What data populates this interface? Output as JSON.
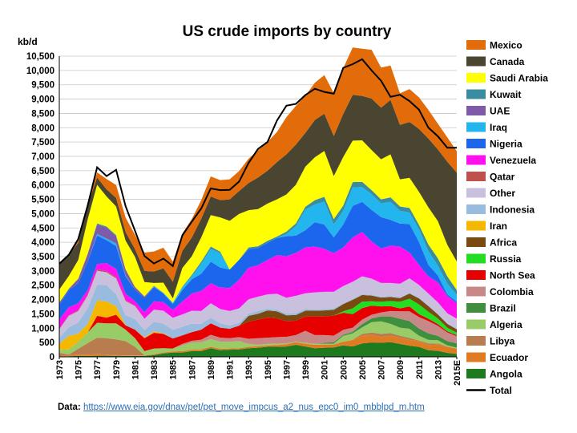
{
  "chart_data": {
    "type": "area",
    "stacked": true,
    "title": "US crude imports by country",
    "ylabel": "kb/d",
    "ylim": [
      0,
      10500
    ],
    "yticks": [
      0,
      500,
      1000,
      1500,
      2000,
      2500,
      3000,
      3500,
      4000,
      4500,
      5000,
      5500,
      6000,
      6500,
      7000,
      7500,
      8000,
      8500,
      9000,
      9500,
      10000,
      10500
    ],
    "ytick_labels": [
      "0",
      "500",
      "1,000",
      "1,500",
      "2,000",
      "2,500",
      "3,000",
      "3,500",
      "4,000",
      "4,500",
      "5,000",
      "5,500",
      "6,000",
      "6,500",
      "7,000",
      "7,500",
      "8,000",
      "8,500",
      "9,000",
      "9,500",
      "10,000",
      "10,500"
    ],
    "x": [
      1973,
      1974,
      1975,
      1976,
      1977,
      1978,
      1979,
      1980,
      1981,
      1982,
      1983,
      1984,
      1985,
      1986,
      1987,
      1988,
      1989,
      1990,
      1991,
      1992,
      1993,
      1994,
      1995,
      1996,
      1997,
      1998,
      1999,
      2000,
      2001,
      2002,
      2003,
      2004,
      2005,
      2006,
      2007,
      2008,
      2009,
      2010,
      2011,
      2012,
      2013,
      2014,
      2015
    ],
    "xtick_labels": [
      "1973",
      "1975",
      "1977",
      "1979",
      "1981",
      "1983",
      "1985",
      "1987",
      "1989",
      "1991",
      "1993",
      "1995",
      "1997",
      "1999",
      "2001",
      "2003",
      "2005",
      "2007",
      "2009",
      "2011",
      "2013",
      "2015E"
    ],
    "grid": true,
    "legend_position": "right",
    "series": [
      {
        "name": "Angola",
        "color": "#1f7a1f",
        "values": [
          0,
          20,
          30,
          30,
          40,
          40,
          30,
          30,
          30,
          30,
          60,
          120,
          150,
          150,
          200,
          200,
          300,
          230,
          250,
          260,
          300,
          320,
          350,
          350,
          360,
          420,
          360,
          300,
          320,
          330,
          400,
          360,
          470,
          500,
          490,
          510,
          450,
          390,
          350,
          230,
          210,
          140,
          100
        ]
      },
      {
        "name": "Ecuador",
        "color": "#e07b22",
        "values": [
          20,
          40,
          50,
          50,
          50,
          40,
          30,
          20,
          20,
          20,
          30,
          30,
          40,
          50,
          50,
          60,
          50,
          50,
          40,
          40,
          50,
          50,
          50,
          60,
          80,
          90,
          100,
          120,
          110,
          100,
          130,
          220,
          270,
          270,
          200,
          220,
          210,
          200,
          200,
          180,
          220,
          210,
          190
        ]
      },
      {
        "name": "Libya",
        "color": "#b87c4f",
        "values": [
          120,
          20,
          200,
          400,
          580,
          570,
          550,
          500,
          300,
          0,
          0,
          0,
          0,
          0,
          0,
          0,
          0,
          0,
          0,
          0,
          0,
          0,
          0,
          0,
          0,
          0,
          0,
          0,
          0,
          0,
          0,
          20,
          60,
          80,
          110,
          100,
          80,
          70,
          20,
          60,
          40,
          10,
          0
        ]
      },
      {
        "name": "Algeria",
        "color": "#99cc66",
        "values": [
          100,
          180,
          250,
          370,
          520,
          520,
          560,
          400,
          300,
          150,
          200,
          150,
          100,
          200,
          250,
          250,
          270,
          250,
          230,
          250,
          100,
          50,
          50,
          50,
          30,
          20,
          30,
          30,
          30,
          30,
          200,
          220,
          230,
          360,
          440,
          320,
          280,
          320,
          170,
          120,
          110,
          40,
          30
        ]
      },
      {
        "name": "Brazil",
        "color": "#3f8f3f",
        "values": [
          0,
          0,
          0,
          0,
          0,
          0,
          0,
          0,
          0,
          0,
          0,
          0,
          0,
          0,
          0,
          0,
          0,
          0,
          0,
          0,
          0,
          0,
          0,
          0,
          0,
          0,
          0,
          0,
          30,
          50,
          40,
          50,
          110,
          130,
          170,
          260,
          310,
          270,
          250,
          230,
          150,
          150,
          150
        ]
      },
      {
        "name": "Colombia",
        "color": "#c98888",
        "values": [
          0,
          0,
          0,
          0,
          0,
          0,
          0,
          0,
          0,
          0,
          0,
          0,
          0,
          50,
          60,
          90,
          150,
          140,
          130,
          140,
          180,
          230,
          220,
          230,
          230,
          230,
          420,
          310,
          270,
          230,
          170,
          150,
          160,
          130,
          140,
          190,
          260,
          340,
          400,
          430,
          350,
          300,
          250
        ]
      },
      {
        "name": "North Sea",
        "color": "#e60000",
        "values": [
          0,
          0,
          0,
          0,
          240,
          200,
          300,
          150,
          300,
          450,
          550,
          500,
          350,
          300,
          300,
          350,
          400,
          350,
          330,
          400,
          600,
          650,
          700,
          650,
          550,
          500,
          500,
          650,
          650,
          700,
          600,
          470,
          400,
          320,
          210,
          170,
          100,
          170,
          100,
          80,
          60,
          40,
          40
        ]
      },
      {
        "name": "Russia",
        "color": "#22dd22",
        "values": [
          0,
          0,
          0,
          0,
          0,
          0,
          0,
          0,
          0,
          0,
          0,
          0,
          0,
          0,
          0,
          0,
          0,
          0,
          0,
          0,
          0,
          0,
          0,
          0,
          0,
          0,
          0,
          0,
          0,
          0,
          50,
          200,
          230,
          150,
          160,
          180,
          230,
          270,
          340,
          240,
          200,
          130,
          80
        ]
      },
      {
        "name": "Africa",
        "color": "#7a4a10",
        "values": [
          0,
          0,
          0,
          0,
          0,
          0,
          0,
          0,
          0,
          0,
          0,
          0,
          0,
          0,
          0,
          0,
          0,
          0,
          0,
          0,
          200,
          200,
          250,
          250,
          200,
          200,
          200,
          200,
          210,
          200,
          250,
          300,
          230,
          200,
          150,
          140,
          130,
          180,
          210,
          200,
          140,
          130,
          120
        ]
      },
      {
        "name": "Iran",
        "color": "#f5b800",
        "values": [
          220,
          470,
          280,
          300,
          540,
          560,
          300,
          0,
          0,
          30,
          50,
          20,
          0,
          0,
          0,
          0,
          0,
          0,
          0,
          0,
          0,
          0,
          0,
          0,
          0,
          0,
          0,
          0,
          0,
          0,
          0,
          0,
          0,
          0,
          0,
          0,
          0,
          0,
          0,
          0,
          0,
          0,
          0
        ]
      },
      {
        "name": "Indonesia",
        "color": "#99bbdd",
        "values": [
          200,
          300,
          390,
          540,
          540,
          570,
          420,
          350,
          370,
          250,
          330,
          340,
          300,
          300,
          300,
          200,
          200,
          150,
          120,
          100,
          80,
          100,
          60,
          60,
          60,
          70,
          60,
          40,
          50,
          50,
          30,
          30,
          30,
          30,
          30,
          30,
          30,
          30,
          20,
          20,
          20,
          20,
          20
        ]
      },
      {
        "name": "Other",
        "color": "#c9c0dd",
        "values": [
          300,
          400,
          400,
          450,
          500,
          450,
          550,
          500,
          450,
          400,
          430,
          450,
          420,
          430,
          450,
          450,
          500,
          500,
          500,
          500,
          500,
          500,
          500,
          550,
          550,
          600,
          550,
          600,
          600,
          580,
          600,
          600,
          620,
          560,
          480,
          460,
          470,
          500,
          450,
          420,
          400,
          350,
          350
        ]
      },
      {
        "name": "Qatar",
        "color": "#c0504d",
        "values": [
          20,
          20,
          30,
          30,
          40,
          40,
          40,
          30,
          20,
          0,
          0,
          0,
          0,
          0,
          0,
          0,
          0,
          0,
          0,
          0,
          0,
          0,
          0,
          0,
          0,
          0,
          0,
          0,
          0,
          0,
          0,
          0,
          0,
          0,
          0,
          0,
          0,
          0,
          0,
          0,
          0,
          0,
          0
        ]
      },
      {
        "name": "Venezuela",
        "color": "#ff11ee",
        "values": [
          330,
          280,
          240,
          160,
          190,
          280,
          290,
          230,
          150,
          230,
          290,
          300,
          280,
          450,
          600,
          700,
          700,
          750,
          800,
          1000,
          1100,
          1100,
          1200,
          1350,
          1450,
          1500,
          1600,
          1600,
          1500,
          1350,
          1350,
          1550,
          1550,
          1300,
          1200,
          1300,
          1300,
          900,
          700,
          600,
          700,
          600,
          550
        ]
      },
      {
        "name": "Nigeria",
        "color": "#1c66ee",
        "values": [
          500,
          600,
          700,
          1000,
          1000,
          800,
          800,
          600,
          400,
          500,
          500,
          300,
          200,
          400,
          500,
          600,
          750,
          700,
          650,
          700,
          650,
          600,
          600,
          600,
          700,
          600,
          600,
          850,
          850,
          550,
          800,
          1100,
          1050,
          1100,
          1100,
          900,
          800,
          1000,
          800,
          400,
          240,
          60,
          50
        ]
      },
      {
        "name": "Iraq",
        "color": "#22b5ee",
        "values": [
          0,
          0,
          0,
          0,
          50,
          60,
          90,
          30,
          0,
          0,
          20,
          20,
          50,
          100,
          100,
          350,
          450,
          500,
          0,
          0,
          0,
          0,
          0,
          0,
          80,
          330,
          720,
          620,
          800,
          450,
          480,
          650,
          520,
          550,
          480,
          630,
          450,
          400,
          450,
          480,
          340,
          380,
          230
        ]
      },
      {
        "name": "UAE",
        "color": "#7f5aa8",
        "values": [
          70,
          40,
          150,
          250,
          330,
          380,
          250,
          200,
          100,
          50,
          20,
          10,
          0,
          0,
          0,
          0,
          0,
          0,
          0,
          0,
          0,
          0,
          0,
          0,
          0,
          0,
          0,
          0,
          0,
          0,
          0,
          0,
          0,
          0,
          0,
          0,
          0,
          0,
          0,
          0,
          0,
          0,
          0
        ]
      },
      {
        "name": "Kuwait",
        "color": "#3a8ca0",
        "values": [
          20,
          10,
          10,
          20,
          40,
          40,
          40,
          20,
          0,
          0,
          0,
          0,
          0,
          20,
          50,
          70,
          80,
          50,
          0,
          0,
          60,
          60,
          70,
          50,
          80,
          100,
          100,
          150,
          170,
          190,
          180,
          180,
          180,
          140,
          140,
          160,
          150,
          160,
          150,
          230,
          260,
          250,
          170
        ]
      },
      {
        "name": "Saudi Arabia",
        "color": "#ffff00",
        "values": [
          450,
          440,
          650,
          1200,
          1350,
          1050,
          1000,
          1000,
          1050,
          500,
          100,
          350,
          150,
          650,
          650,
          850,
          1100,
          1200,
          1700,
          1600,
          1300,
          1300,
          1300,
          1300,
          1300,
          1350,
          1400,
          1500,
          1600,
          1500,
          1700,
          1450,
          1450,
          1400,
          1400,
          1500,
          950,
          1050,
          1150,
          1300,
          1300,
          1100,
          1000
        ]
      },
      {
        "name": "Canada",
        "color": "#4a4530",
        "values": [
          900,
          750,
          600,
          500,
          250,
          250,
          300,
          300,
          270,
          390,
          400,
          500,
          580,
          600,
          650,
          650,
          650,
          600,
          750,
          800,
          950,
          1100,
          1150,
          1300,
          1400,
          1400,
          1180,
          1300,
          1300,
          1400,
          1500,
          1600,
          1550,
          1800,
          1800,
          1900,
          1900,
          1950,
          2200,
          2400,
          2500,
          2900,
          3100
        ]
      },
      {
        "name": "Mexico",
        "color": "#e36c0a",
        "values": [
          0,
          20,
          70,
          100,
          180,
          360,
          450,
          500,
          500,
          640,
          700,
          720,
          700,
          600,
          650,
          650,
          700,
          700,
          700,
          700,
          850,
          950,
          1000,
          1050,
          1300,
          1350,
          1300,
          1300,
          1350,
          1500,
          1600,
          1650,
          1650,
          1700,
          1400,
          1200,
          1100,
          1150,
          1100,
          1000,
          900,
          850,
          750
        ]
      }
    ],
    "total": [
      3250,
      3560,
      4110,
      5280,
      6620,
      6310,
      6530,
      5260,
      4400,
      3520,
      3260,
      3430,
      3170,
      4240,
      4720,
      5180,
      5880,
      5820,
      5830,
      6120,
      6770,
      7260,
      7500,
      8250,
      8770,
      8830,
      9140,
      9360,
      9250,
      9190,
      10090,
      10220,
      10390,
      10000,
      9640,
      9080,
      9150,
      8930,
      8630,
      8000,
      7700,
      7300,
      7300
    ],
    "legend_order": [
      "Mexico",
      "Canada",
      "Saudi Arabia",
      "Kuwait",
      "UAE",
      "Iraq",
      "Nigeria",
      "Venezuela",
      "Qatar",
      "Other",
      "Indonesia",
      "Iran",
      "Africa",
      "Russia",
      "North Sea",
      "Colombia",
      "Brazil",
      "Algeria",
      "Libya",
      "Ecuador",
      "Angola",
      "Total"
    ],
    "total_label": "Total",
    "total_color": "#000000"
  },
  "footer": {
    "prefix": "Data: ",
    "link_text": "https://www.eia.gov/dnav/pet/pet_move_impcus_a2_nus_epc0_im0_mbblpd_m.htm"
  }
}
